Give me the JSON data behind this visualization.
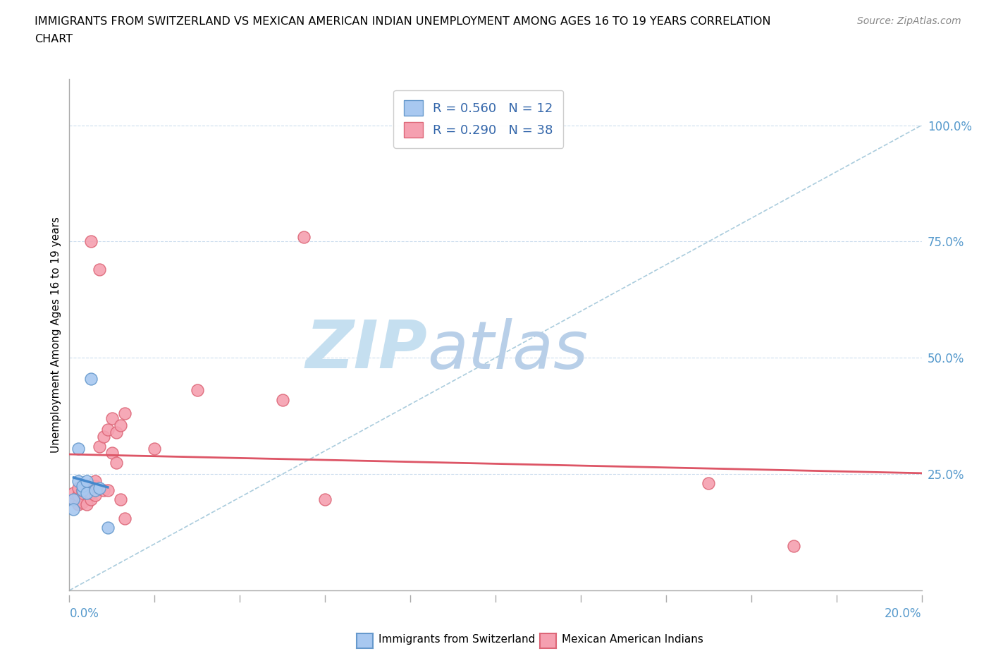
{
  "title_line1": "IMMIGRANTS FROM SWITZERLAND VS MEXICAN AMERICAN INDIAN UNEMPLOYMENT AMONG AGES 16 TO 19 YEARS CORRELATION",
  "title_line2": "CHART",
  "source": "Source: ZipAtlas.com",
  "ylabel": "Unemployment Among Ages 16 to 19 years",
  "right_ytick_vals": [
    1.0,
    0.75,
    0.5,
    0.25
  ],
  "xmin": 0.0,
  "xmax": 0.2,
  "ymin": 0.0,
  "ymax": 1.1,
  "swiss_fill": "#a8c8f0",
  "swiss_edge": "#6699cc",
  "mexican_fill": "#f5a0b0",
  "mexican_edge": "#dd6677",
  "swiss_R": 0.56,
  "swiss_N": 12,
  "mexican_R": 0.29,
  "mexican_N": 38,
  "swiss_scatter_x": [
    0.001,
    0.001,
    0.002,
    0.002,
    0.003,
    0.003,
    0.004,
    0.004,
    0.005,
    0.006,
    0.007,
    0.009
  ],
  "swiss_scatter_y": [
    0.195,
    0.175,
    0.305,
    0.235,
    0.215,
    0.225,
    0.235,
    0.21,
    0.455,
    0.215,
    0.22,
    0.135
  ],
  "mexican_scatter_x": [
    0.001,
    0.001,
    0.002,
    0.002,
    0.002,
    0.003,
    0.003,
    0.003,
    0.004,
    0.004,
    0.004,
    0.005,
    0.005,
    0.005,
    0.006,
    0.006,
    0.006,
    0.007,
    0.007,
    0.008,
    0.008,
    0.009,
    0.009,
    0.01,
    0.01,
    0.011,
    0.011,
    0.012,
    0.012,
    0.013,
    0.013,
    0.02,
    0.03,
    0.05,
    0.055,
    0.06,
    0.15,
    0.17
  ],
  "mexican_scatter_y": [
    0.195,
    0.21,
    0.185,
    0.205,
    0.22,
    0.19,
    0.21,
    0.215,
    0.185,
    0.215,
    0.225,
    0.195,
    0.21,
    0.75,
    0.205,
    0.225,
    0.235,
    0.69,
    0.31,
    0.33,
    0.215,
    0.345,
    0.215,
    0.37,
    0.295,
    0.34,
    0.275,
    0.355,
    0.195,
    0.155,
    0.38,
    0.305,
    0.43,
    0.41,
    0.76,
    0.195,
    0.23,
    0.095
  ],
  "swiss_line_color": "#4488cc",
  "mexican_line_color": "#dd5566",
  "diagonal_color": "#aaccdd",
  "watermark_zip": "ZIP",
  "watermark_atlas": "atlas",
  "watermark_color_zip": "#c5dff0",
  "watermark_color_atlas": "#b8cfe8",
  "legend_label_swiss": "R = 0.560   N = 12",
  "legend_label_mexican": "R = 0.290   N = 38",
  "bottom_legend_swiss": "Immigrants from Switzerland",
  "bottom_legend_mexican": "Mexican American Indians"
}
